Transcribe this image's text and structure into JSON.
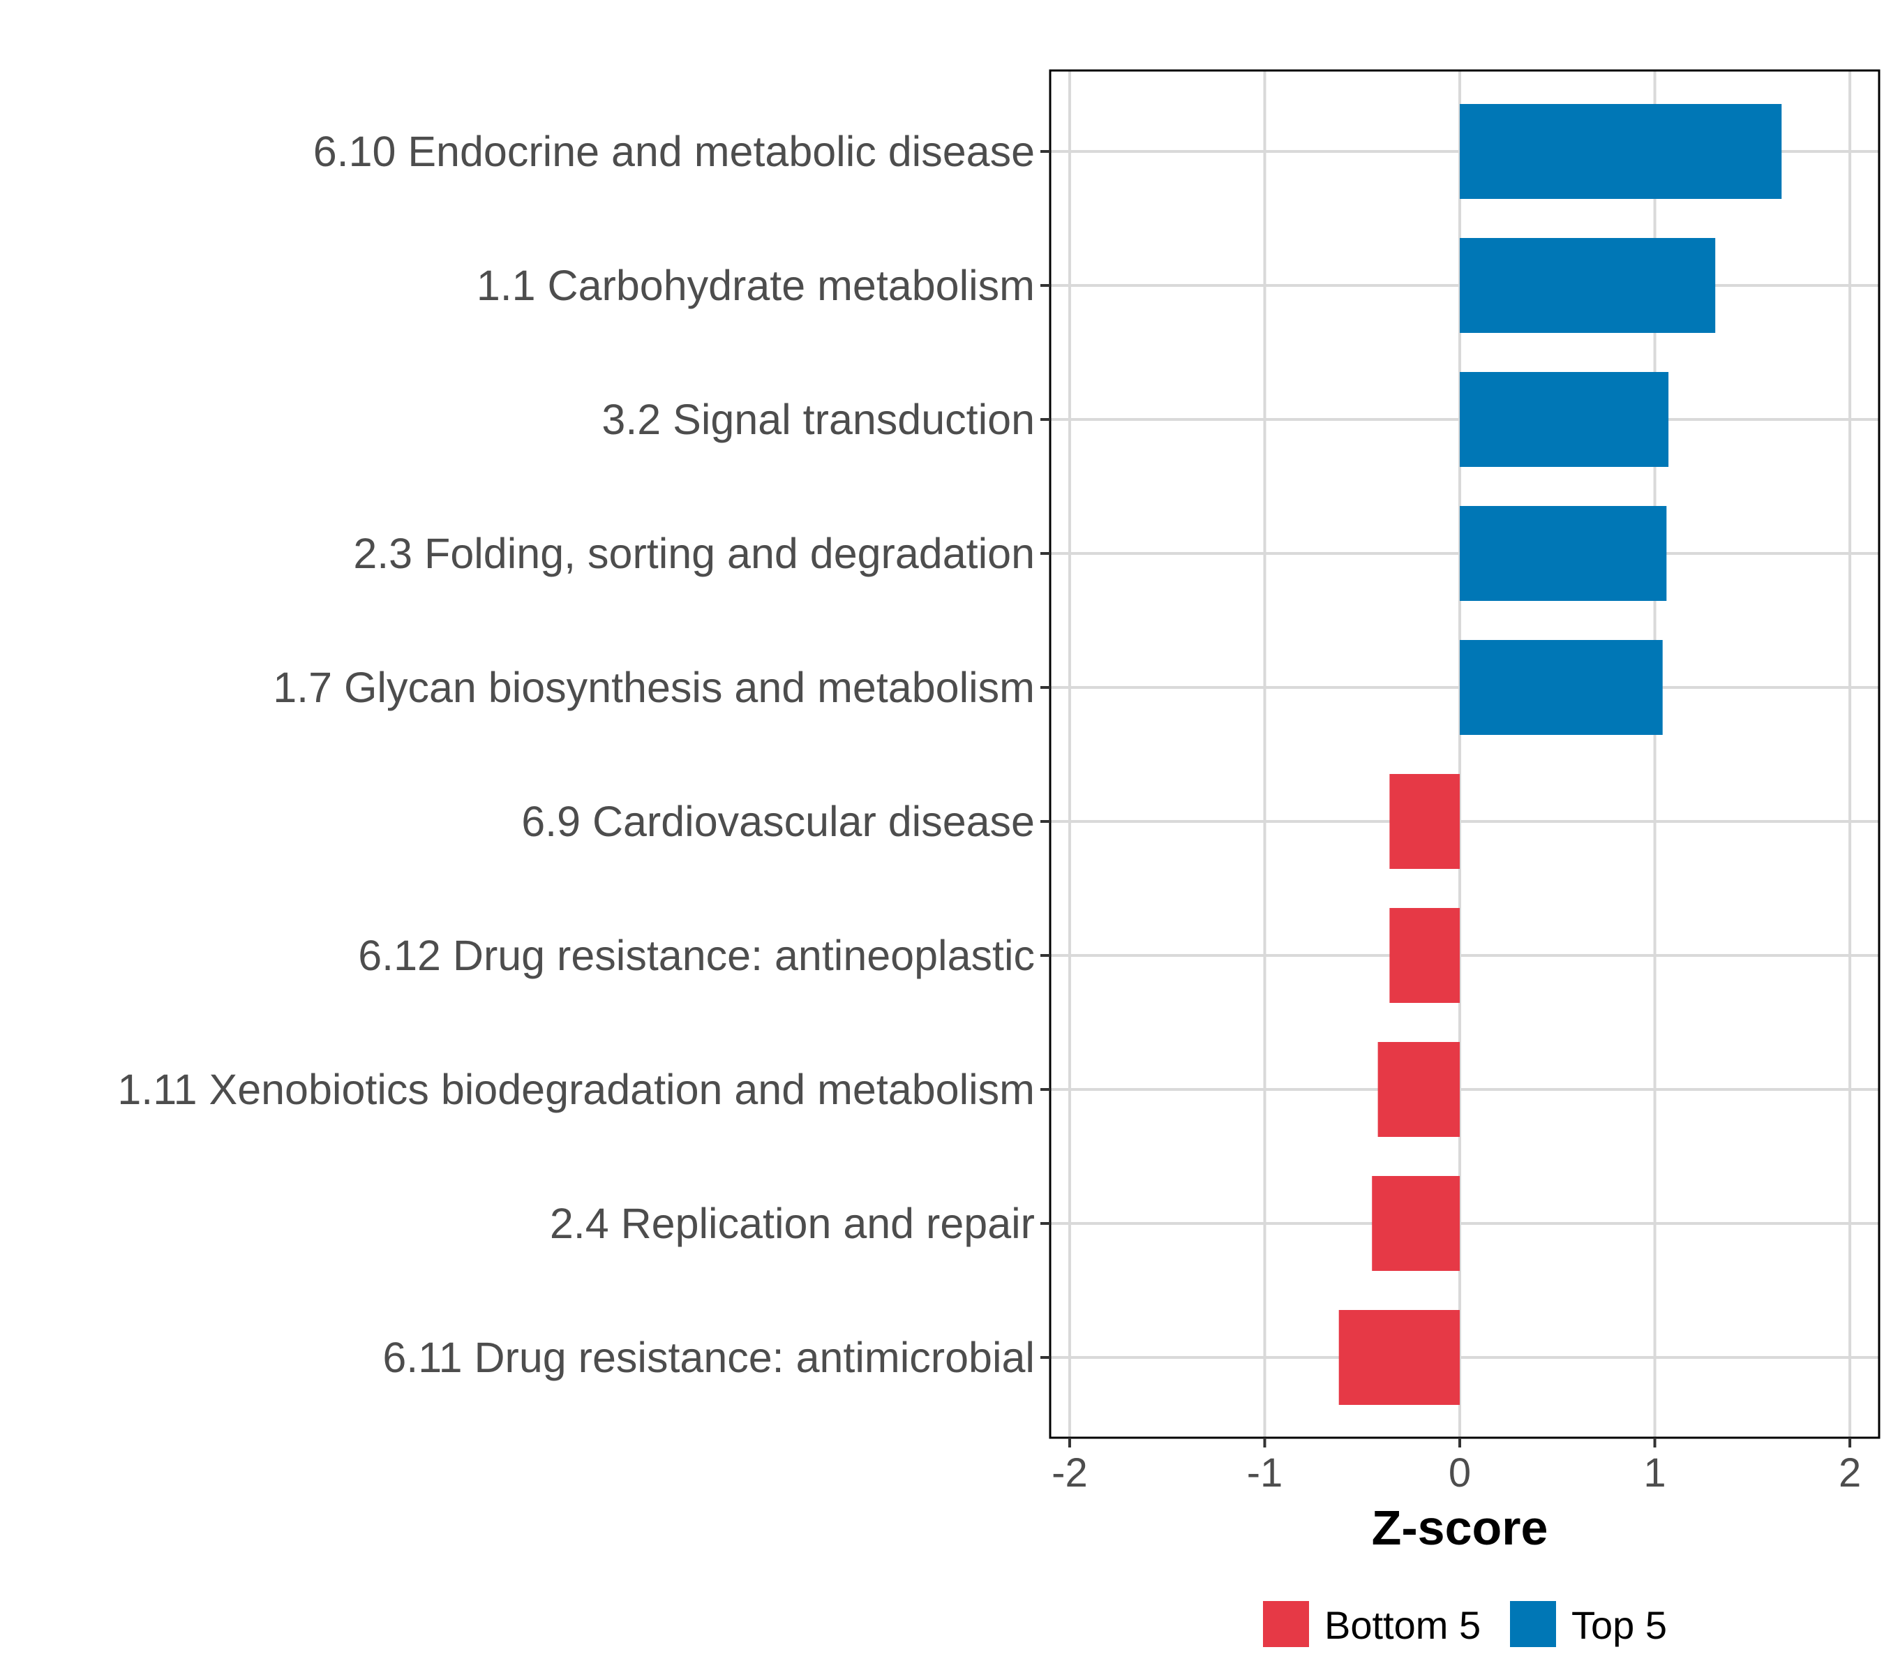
{
  "chart_data": {
    "type": "bar",
    "orientation": "horizontal",
    "title": "",
    "xlabel": "Z-score",
    "ylabel": "",
    "xlim": [
      -2.1,
      2.15
    ],
    "xticks": [
      -2,
      -1,
      0,
      1,
      2
    ],
    "xtick_labels": [
      "-2",
      "-1",
      "0",
      "1",
      "2"
    ],
    "grid": true,
    "legend_position": "bottom",
    "categories": [
      "6.10 Endocrine and metabolic disease",
      "1.1 Carbohydrate metabolism",
      "3.2 Signal transduction",
      "2.3 Folding, sorting and degradation",
      "1.7 Glycan biosynthesis and metabolism",
      "6.9 Cardiovascular disease",
      "6.12 Drug resistance: antineoplastic",
      "1.11 Xenobiotics biodegradation and metabolism",
      "2.4 Replication and repair",
      "6.11 Drug resistance: antimicrobial"
    ],
    "values": [
      1.65,
      1.31,
      1.07,
      1.06,
      1.04,
      -0.36,
      -0.36,
      -0.42,
      -0.45,
      -0.62
    ],
    "groups": [
      "Top 5",
      "Top 5",
      "Top 5",
      "Top 5",
      "Top 5",
      "Bottom 5",
      "Bottom 5",
      "Bottom 5",
      "Bottom 5",
      "Bottom 5"
    ],
    "legend": [
      {
        "name": "Bottom 5",
        "color": "#e63946"
      },
      {
        "name": "Top 5",
        "color": "#0077b6"
      }
    ]
  }
}
